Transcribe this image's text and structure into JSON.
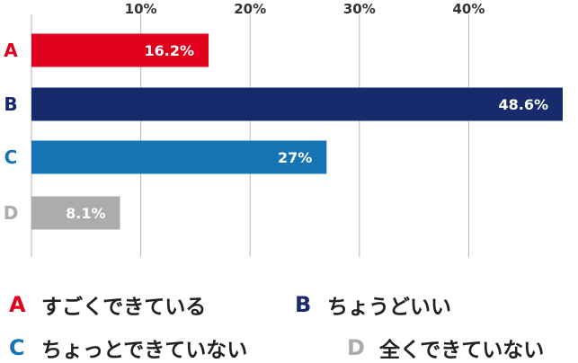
{
  "chart_data": {
    "type": "bar",
    "orientation": "horizontal",
    "categories": [
      "A",
      "B",
      "C",
      "D"
    ],
    "values": [
      16.2,
      48.6,
      27,
      8.1
    ],
    "value_labels": [
      "16.2%",
      "48.6%",
      "27%",
      "8.1%"
    ],
    "colors": [
      "#e0001b",
      "#172a6c",
      "#1574b3",
      "#acacac"
    ],
    "x_ticks": [
      "10%",
      "20%",
      "30%",
      "40%"
    ],
    "x_tick_values": [
      10,
      20,
      30,
      40
    ],
    "xlim": [
      0,
      48.6
    ],
    "grid": true,
    "legend_position": "bottom"
  },
  "legend": [
    {
      "key": "A",
      "label": "すごくできている",
      "color": "#e0001b"
    },
    {
      "key": "B",
      "label": "ちょうどいい",
      "color": "#172a6c"
    },
    {
      "key": "C",
      "label": "ちょっとできていない",
      "color": "#1574b3"
    },
    {
      "key": "D",
      "label": "全くできていない",
      "color": "#acacac"
    }
  ]
}
